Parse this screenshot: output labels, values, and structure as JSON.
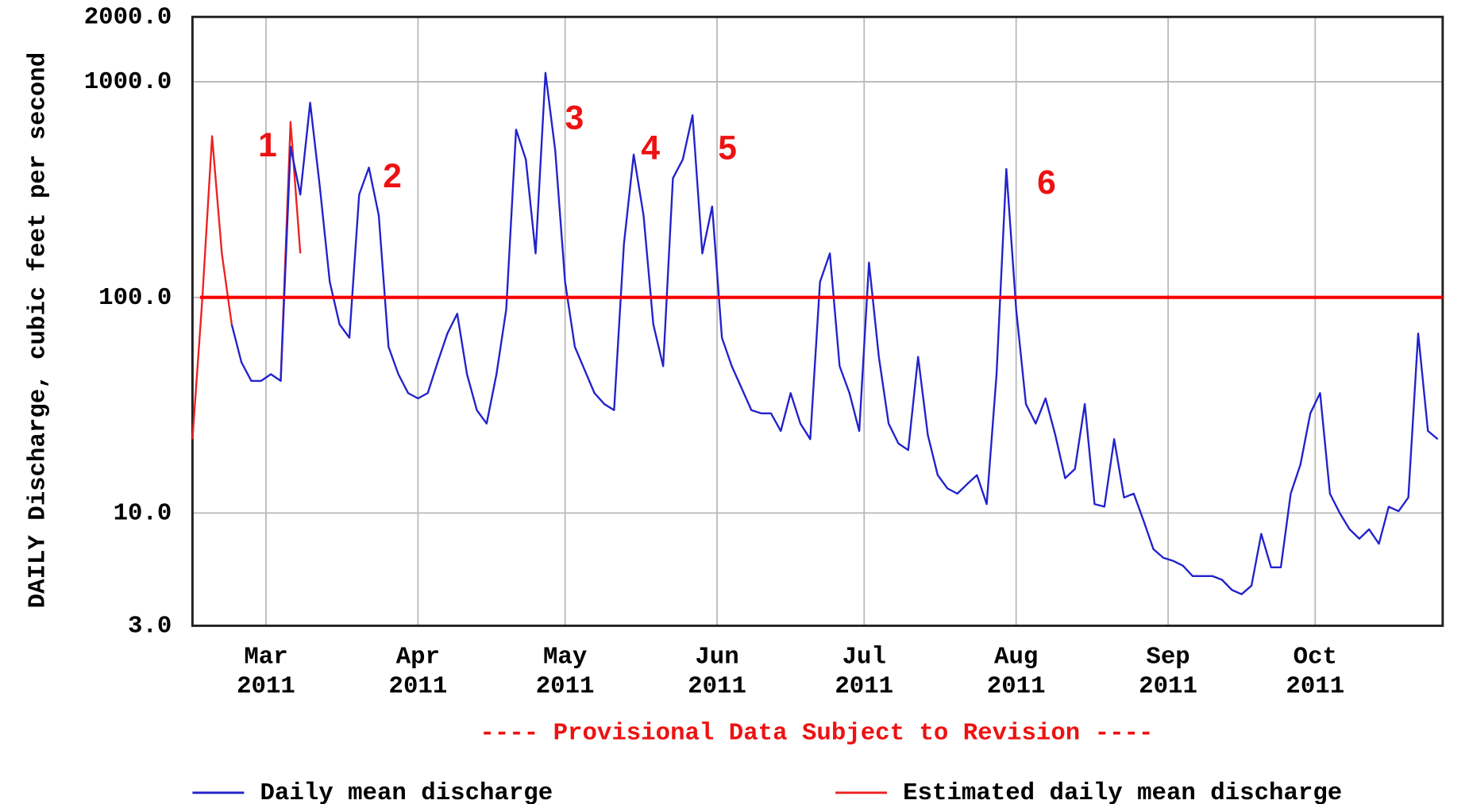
{
  "chart_data": {
    "type": "line",
    "y_label": "DAILY Discharge, cubic feet per second",
    "log_scale": true,
    "ylim": [
      3,
      2000
    ],
    "yticks": [
      {
        "value": 3,
        "label": "3.0"
      },
      {
        "value": 10,
        "label": "10.0"
      },
      {
        "value": 100,
        "label": "100.0"
      },
      {
        "value": 1000,
        "label": "1000.0"
      },
      {
        "value": 2000,
        "label": "2000.0"
      }
    ],
    "xlim": [
      0,
      127.5
    ],
    "xticks": [
      {
        "value": 7.5,
        "label": "Mar 2011"
      },
      {
        "value": 23,
        "label": "Apr 2011"
      },
      {
        "value": 38,
        "label": "May 2011"
      },
      {
        "value": 53.5,
        "label": "Jun 2011"
      },
      {
        "value": 68.5,
        "label": "Jul 2011"
      },
      {
        "value": 84,
        "label": "Aug 2011"
      },
      {
        "value": 99.5,
        "label": "Sep 2011"
      },
      {
        "value": 114.5,
        "label": "Oct 2011"
      }
    ],
    "grid": true,
    "reference_line": {
      "value": 100,
      "color": "#ff0000"
    },
    "note": "---- Provisional Data Subject to Revision ----",
    "annotations": [
      "1",
      "2",
      "3",
      "4",
      "5",
      "6"
    ],
    "series": [
      {
        "name": "Daily mean discharge",
        "color": "#2222cc",
        "values": [
          null,
          null,
          null,
          null,
          75,
          50,
          41,
          41,
          44,
          41,
          500,
          300,
          800,
          323,
          118,
          75,
          65,
          300,
          400,
          240,
          59,
          44,
          36,
          34,
          36,
          50,
          68,
          84,
          44,
          30,
          26,
          44,
          88,
          600,
          436,
          160,
          1100,
          480,
          118,
          59,
          46,
          36,
          32,
          30,
          177,
          460,
          240,
          75,
          48,
          357,
          436,
          700,
          160,
          264,
          65,
          48,
          38,
          30,
          29,
          29,
          24,
          36,
          26,
          22,
          118,
          160,
          48,
          36,
          24,
          145,
          53,
          26,
          21,
          19.6,
          53,
          23,
          15,
          13,
          12.3,
          13.6,
          15,
          11,
          44,
          394,
          88,
          32,
          26,
          34,
          23,
          14.5,
          16,
          32,
          11,
          10.7,
          22,
          11.8,
          12.3,
          9.2,
          6.8,
          6.2,
          6.0,
          5.7,
          5.1,
          5.1,
          5.1,
          4.9,
          4.4,
          4.2,
          4.6,
          8.0,
          5.6,
          5.6,
          12.3,
          16.8,
          29,
          36,
          12.3,
          10,
          8.4,
          7.6,
          8.4,
          7.2,
          10.7,
          10.2,
          11.8,
          68,
          24,
          22
        ]
      },
      {
        "name": "Estimated daily mean discharge",
        "color": "#ee2222",
        "values": [
          22,
          97,
          560,
          160,
          75,
          null,
          null,
          null,
          null,
          41,
          651,
          160,
          null,
          null,
          null,
          null,
          null,
          null,
          null,
          null,
          null,
          null,
          null,
          null,
          null,
          null,
          null,
          null,
          null,
          null,
          null,
          null,
          null,
          null,
          null,
          null,
          null,
          null,
          null,
          null,
          null,
          null,
          null,
          null,
          null,
          null,
          null,
          null,
          null,
          null,
          null,
          null,
          null,
          null,
          null,
          null,
          null,
          null,
          null,
          null,
          null,
          null,
          null,
          null,
          null,
          null,
          null,
          null,
          null,
          null,
          null,
          null,
          null,
          null,
          null,
          null,
          null,
          null,
          null,
          null,
          null,
          null,
          null,
          null,
          null,
          null,
          null,
          null,
          null,
          null,
          null,
          null,
          null,
          null,
          null,
          null,
          null,
          null,
          null,
          null,
          null,
          null,
          null,
          null,
          null,
          null,
          null,
          null,
          null,
          null,
          null,
          null,
          null,
          null,
          null,
          null,
          null,
          null,
          null,
          null,
          null,
          null,
          null,
          null,
          null,
          null,
          null,
          null
        ]
      }
    ]
  }
}
